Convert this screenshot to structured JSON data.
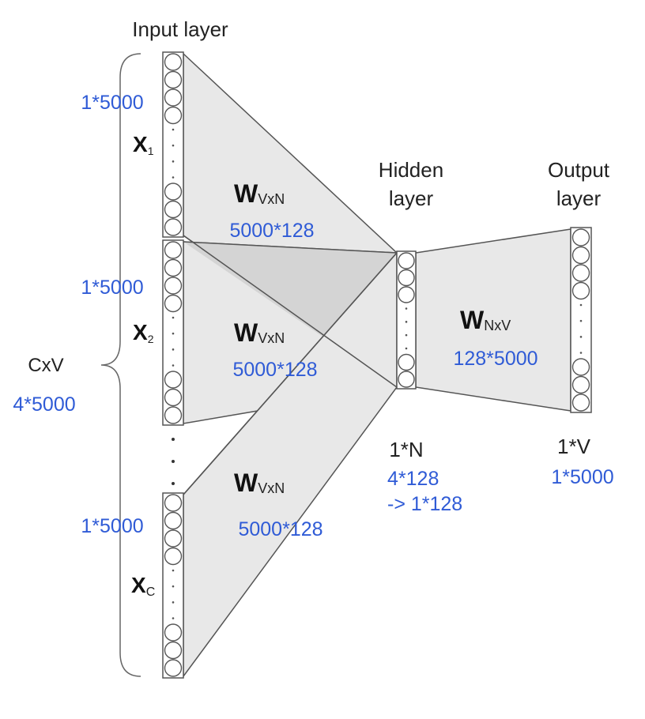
{
  "colors": {
    "blue_text": "#2f5bd6",
    "dark_text": "#222222",
    "panel_fill": "#e8e8e8",
    "overlap_fill": "#d4d4d4",
    "line": "#555555"
  },
  "layers": {
    "input_title": "Input layer",
    "hidden_title_line1": "Hidden",
    "hidden_title_line2": "layer",
    "output_title_line1": "Output",
    "output_title_line2": "layer"
  },
  "inputs": [
    {
      "var": "X",
      "sub": "1",
      "dim": "1*5000",
      "weight": "W",
      "weight_sub": "VxN",
      "weight_size": "5000*128"
    },
    {
      "var": "X",
      "sub": "2",
      "dim": "1*5000",
      "weight": "W",
      "weight_sub": "VxN",
      "weight_size": "5000*128"
    },
    {
      "var": "X",
      "sub": "C",
      "dim": "1*5000",
      "weight": "W",
      "weight_sub": "VxN",
      "weight_size": "5000*128"
    }
  ],
  "context": {
    "label": "CxV",
    "dim": "4*5000"
  },
  "hidden": {
    "dim_label": "1*N",
    "dim_a": "4*128",
    "dim_b": "-> 1*128"
  },
  "output": {
    "weight": "W",
    "weight_sub": "NxV",
    "weight_size": "128*5000",
    "dim_label": "1*V",
    "dim": "1*5000"
  }
}
